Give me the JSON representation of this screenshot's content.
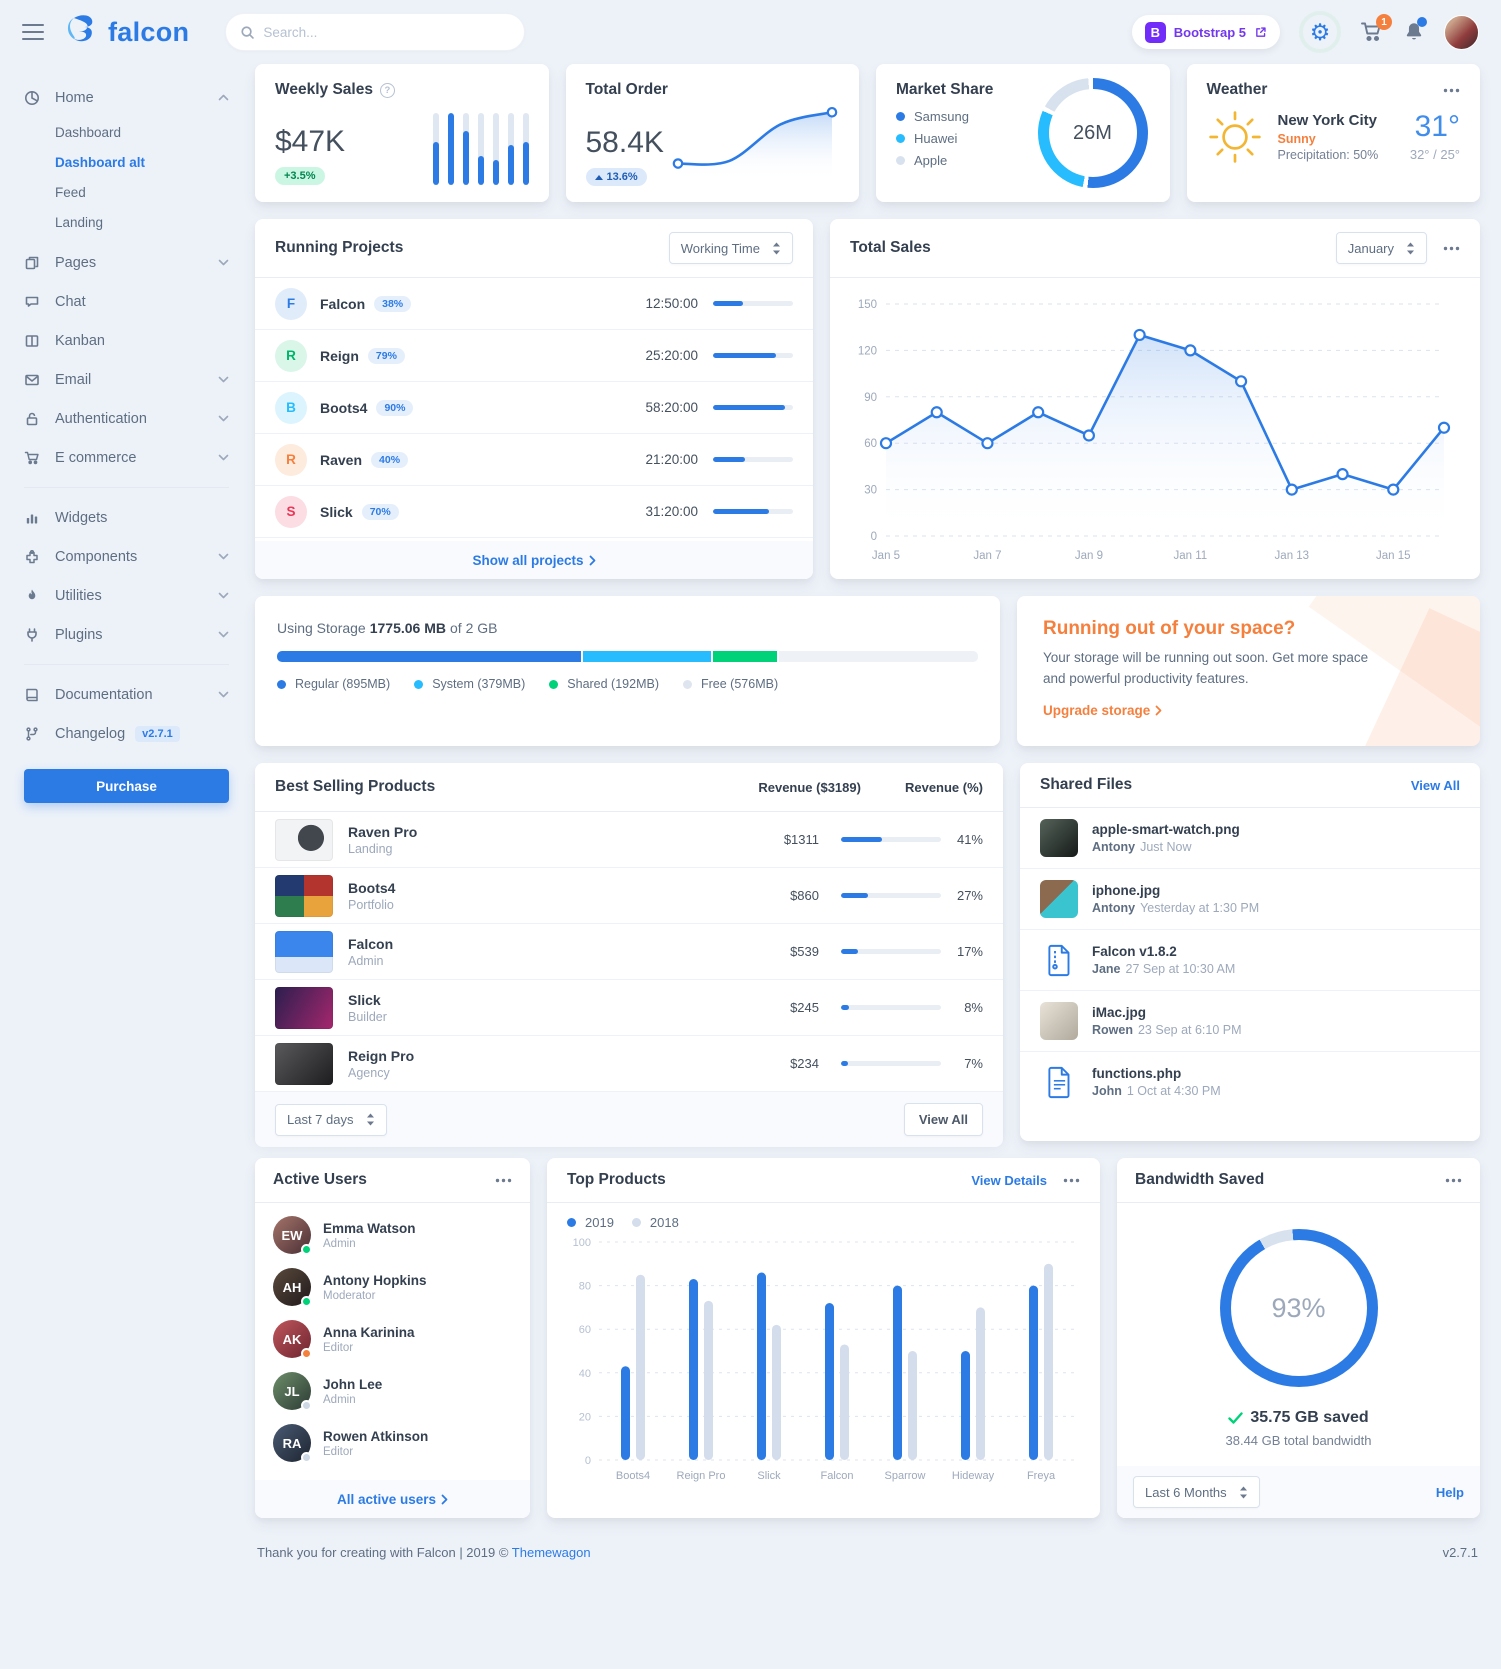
{
  "colors": {
    "primary": "#2c7be5",
    "info": "#27bcfd",
    "success": "#00d27a",
    "warning": "#f5803e",
    "danger": "#e63757"
  },
  "brand": {
    "name": "falcon"
  },
  "navbar": {
    "search_placeholder": "Search...",
    "bootstrap_initial": "B",
    "bootstrap_badge": "Bootstrap 5",
    "cart_count": "1"
  },
  "sidebar": {
    "purchase_label": "Purchase",
    "groups": [
      {
        "items": [
          {
            "label": "Home",
            "icon": "chart-pie",
            "expanded": true,
            "children": [
              {
                "label": "Dashboard"
              },
              {
                "label": "Dashboard alt",
                "active": true
              },
              {
                "label": "Feed"
              },
              {
                "label": "Landing"
              }
            ]
          },
          {
            "label": "Pages",
            "icon": "copy",
            "chevron": true
          },
          {
            "label": "Chat",
            "icon": "comments"
          },
          {
            "label": "Kanban",
            "icon": "columns"
          },
          {
            "label": "Email",
            "icon": "envelope",
            "chevron": true
          },
          {
            "label": "Authentication",
            "icon": "lock",
            "chevron": true
          },
          {
            "label": "E commerce",
            "icon": "cart",
            "chevron": true
          }
        ]
      },
      {
        "items": [
          {
            "label": "Widgets",
            "icon": "chart-bar"
          },
          {
            "label": "Components",
            "icon": "puzzle",
            "chevron": true
          },
          {
            "label": "Utilities",
            "icon": "fire",
            "chevron": true
          },
          {
            "label": "Plugins",
            "icon": "plug",
            "chevron": true
          }
        ]
      },
      {
        "items": [
          {
            "label": "Documentation",
            "icon": "book",
            "chevron": true
          },
          {
            "label": "Changelog",
            "icon": "code-branch",
            "badge": "v2.7.1"
          }
        ]
      }
    ]
  },
  "cards": {
    "weekly_sales": {
      "title": "Weekly Sales",
      "value": "$47K",
      "badge": "+3.5%"
    },
    "total_order": {
      "title": "Total Order",
      "value": "58.4K",
      "badge": "13.6%"
    },
    "market_share": {
      "title": "Market Share",
      "center": "26M"
    },
    "weather": {
      "title": "Weather",
      "city": "New York City",
      "condition": "Sunny",
      "precipitation": "Precipitation: 50%",
      "temp": "31°",
      "range": "32° / 25°"
    }
  },
  "running_projects": {
    "title": "Running Projects",
    "select": "Working Time",
    "footer_link": "Show all projects",
    "items": [
      {
        "initial": "F",
        "name": "Falcon",
        "pct": "38%",
        "progress": 38,
        "time": "12:50:00",
        "color": "blue"
      },
      {
        "initial": "R",
        "name": "Reign",
        "pct": "79%",
        "progress": 79,
        "time": "25:20:00",
        "color": "green"
      },
      {
        "initial": "B",
        "name": "Boots4",
        "pct": "90%",
        "progress": 90,
        "time": "58:20:00",
        "color": "cyan"
      },
      {
        "initial": "R",
        "name": "Raven",
        "pct": "40%",
        "progress": 40,
        "time": "21:20:00",
        "color": "orange"
      },
      {
        "initial": "S",
        "name": "Slick",
        "pct": "70%",
        "progress": 70,
        "time": "31:20:00",
        "color": "red"
      }
    ]
  },
  "total_sales": {
    "title": "Total Sales",
    "select": "January"
  },
  "storage": {
    "label_prefix": "Using Storage",
    "used": "1775.06 MB",
    "of_label": "of 2 GB",
    "segments": [
      {
        "label": "Regular (895MB)",
        "pct": 43.7,
        "color": "#2c7be5"
      },
      {
        "label": "System (379MB)",
        "pct": 18.5,
        "color": "#27bcfd"
      },
      {
        "label": "Shared (192MB)",
        "pct": 9.4,
        "color": "#00d27a"
      },
      {
        "label": "Free (576MB)",
        "pct": 28.4,
        "color": "#eef1f6"
      }
    ]
  },
  "promo": {
    "title": "Running out of your space?",
    "body": "Your storage will be running out soon. Get more space and powerful productivity features.",
    "link": "Upgrade storage"
  },
  "best_selling": {
    "title": "Best Selling Products",
    "col_revenue": "Revenue ($3189)",
    "col_pct": "Revenue (%)",
    "select": "Last 7 days",
    "view_all": "View All",
    "items": [
      {
        "name": "Raven Pro",
        "type": "Landing",
        "revenue": "$1311",
        "pct": 41,
        "thumb": "raven"
      },
      {
        "name": "Boots4",
        "type": "Portfolio",
        "revenue": "$860",
        "pct": 27,
        "thumb": "boots4"
      },
      {
        "name": "Falcon",
        "type": "Admin",
        "revenue": "$539",
        "pct": 17,
        "thumb": "falcon"
      },
      {
        "name": "Slick",
        "type": "Builder",
        "revenue": "$245",
        "pct": 8,
        "thumb": "slick"
      },
      {
        "name": "Reign Pro",
        "type": "Agency",
        "revenue": "$234",
        "pct": 7,
        "thumb": "reign"
      }
    ]
  },
  "shared_files": {
    "title": "Shared Files",
    "view_all": "View All",
    "items": [
      {
        "name": "apple-smart-watch.png",
        "user": "Antony",
        "time": "Just Now",
        "thumb": "watch"
      },
      {
        "name": "iphone.jpg",
        "user": "Antony",
        "time": "Yesterday at 1:30 PM",
        "thumb": "iphone"
      },
      {
        "name": "Falcon v1.8.2",
        "user": "Jane",
        "time": "27 Sep at 10:30 AM",
        "thumb": "zip"
      },
      {
        "name": "iMac.jpg",
        "user": "Rowen",
        "time": "23 Sep at 6:10 PM",
        "thumb": "imac"
      },
      {
        "name": "functions.php",
        "user": "John",
        "time": "1 Oct at 4:30 PM",
        "thumb": "code"
      }
    ]
  },
  "active_users": {
    "title": "Active Users",
    "footer_link": "All active users",
    "items": [
      {
        "name": "Emma Watson",
        "role": "Admin",
        "status": "green"
      },
      {
        "name": "Antony Hopkins",
        "role": "Moderator",
        "status": "green"
      },
      {
        "name": "Anna Karinina",
        "role": "Editor",
        "status": "orange"
      },
      {
        "name": "John Lee",
        "role": "Admin",
        "status": "gray"
      },
      {
        "name": "Rowen Atkinson",
        "role": "Editor",
        "status": "gray"
      }
    ]
  },
  "top_products": {
    "title": "Top Products",
    "view_details": "View Details",
    "legend": [
      "2019",
      "2018"
    ]
  },
  "bandwidth": {
    "title": "Bandwidth Saved",
    "pct": "93%",
    "saved": "35.75 GB saved",
    "total": "38.44 GB total bandwidth",
    "select": "Last 6 Months",
    "help": "Help"
  },
  "page_footer": {
    "text": "Thank you for creating with Falcon | 2019 © ",
    "brand_link": "Themewagon",
    "version": "v2.7.1"
  },
  "chart_data": [
    {
      "id": "weekly_sales",
      "type": "bar",
      "title": "Weekly Sales",
      "values": [
        120,
        200,
        150,
        80,
        70,
        110,
        120
      ],
      "ylim": [
        0,
        200
      ],
      "color": "#2c7be5"
    },
    {
      "id": "total_order",
      "type": "area",
      "title": "Total Order",
      "values": [
        20,
        25,
        95,
        118
      ],
      "ylim": [
        0,
        130
      ],
      "color": "#2c7be5"
    },
    {
      "id": "market_share",
      "type": "pie",
      "title": "Market Share",
      "labels": [
        "Samsung",
        "Huawei",
        "Apple"
      ],
      "values": [
        53,
        30,
        17
      ],
      "unit": "%",
      "center_label": "26M",
      "colors": [
        "#2c7be5",
        "#27bcfd",
        "#d8e2ef"
      ]
    },
    {
      "id": "total_sales",
      "type": "line",
      "title": "Total Sales",
      "x_labels": [
        "Jan 5",
        "Jan 7",
        "Jan 9",
        "Jan 11",
        "Jan 13",
        "Jan 15"
      ],
      "values": [
        60,
        80,
        60,
        80,
        65,
        130,
        120,
        100,
        30,
        40,
        30,
        70
      ],
      "ylim": [
        0,
        150
      ],
      "yticks": [
        0,
        30,
        60,
        90,
        120,
        150
      ],
      "legend_position": "none",
      "grid": true,
      "color": "#2c7be5"
    },
    {
      "id": "top_products",
      "type": "bar",
      "title": "Top Products",
      "categories": [
        "Boots4",
        "Reign Pro",
        "Slick",
        "Falcon",
        "Sparrow",
        "Hideway",
        "Freya"
      ],
      "series": [
        {
          "name": "2019",
          "values": [
            43,
            83,
            86,
            72,
            80,
            50,
            80
          ],
          "color": "#2c7be5"
        },
        {
          "name": "2018",
          "values": [
            85,
            73,
            62,
            53,
            50,
            70,
            90
          ],
          "color": "#d4ddec"
        }
      ],
      "ylim": [
        0,
        100
      ],
      "yticks": [
        0,
        20,
        40,
        60,
        80,
        100
      ],
      "grid": true,
      "legend_position": "top-left"
    },
    {
      "id": "bandwidth",
      "type": "donut",
      "title": "Bandwidth Saved",
      "value": 93,
      "max": 100,
      "label": "93%",
      "color": "#2c7be5",
      "track": "#d8e2ef"
    }
  ]
}
